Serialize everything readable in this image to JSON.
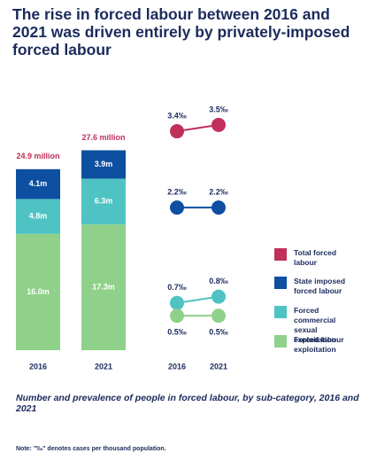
{
  "title": "The rise in forced labour between 2016 and 2021 was driven entirely by privately-imposed forced labour",
  "caption": "Number and prevalence of people in forced labour, by sub-category, 2016 and 2021",
  "note": "Note: \"‰\" denotes cases per thousand population.",
  "chart_data": [
    {
      "type": "stacked_bar",
      "categories": [
        "2016",
        "2021"
      ],
      "ylim": [
        0,
        30
      ],
      "series": [
        {
          "color": "#8fd18a",
          "values": [
            16.0,
            17.3
          ],
          "value_labels": [
            "16.0m",
            "17.3m"
          ]
        },
        {
          "color": "#4fc3c3",
          "values": [
            4.8,
            6.3
          ],
          "value_labels": [
            "4.8m",
            "6.3m"
          ]
        },
        {
          "color": "#0d4fa0",
          "values": [
            4.1,
            3.9
          ],
          "value_labels": [
            "4.1m",
            "3.9m"
          ]
        }
      ],
      "totals": {
        "values": [
          24.9,
          27.6
        ],
        "value_labels": [
          "24.9 million",
          "27.6 million"
        ],
        "color": "#c0305a"
      }
    },
    {
      "type": "line",
      "categories": [
        "2016",
        "2021"
      ],
      "ylim": [
        0,
        4
      ],
      "legend": "right",
      "series": [
        {
          "name": "Total forced labour",
          "color": "#c0305a",
          "values": [
            3.4,
            3.5
          ],
          "value_labels": [
            "3.4‰",
            "3.5‰"
          ]
        },
        {
          "name": "State imposed forced labour",
          "color": "#0d4fa0",
          "values": [
            2.2,
            2.2
          ],
          "value_labels": [
            "2.2‰",
            "2.2‰"
          ]
        },
        {
          "name": "Forced commercial sexual exploitation",
          "color": "#4fc3c3",
          "values": [
            0.7,
            0.8
          ],
          "value_labels": [
            "0.7‰",
            "0.8‰"
          ]
        },
        {
          "name": "Forced labour exploitation",
          "color": "#8fd18a",
          "values": [
            0.5,
            0.5
          ],
          "value_labels": [
            "0.5‰",
            "0.5‰"
          ]
        }
      ]
    }
  ]
}
